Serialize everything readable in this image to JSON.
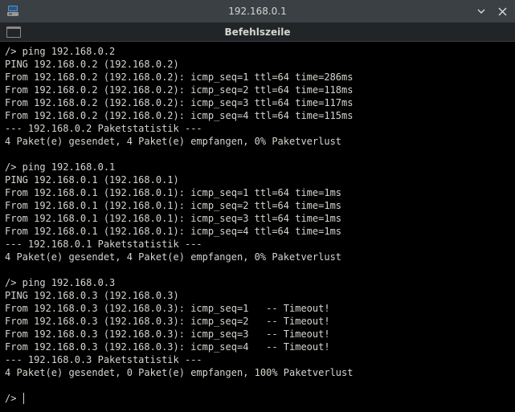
{
  "titlebar": {
    "title": "192.168.0.1",
    "icon_name": "network-pc-icon",
    "icon_colors": {
      "top": "#5294e2",
      "bottom": "#999999"
    }
  },
  "menubar": {
    "label": "Befehlszeile"
  },
  "terminal": {
    "background_color": "#000000",
    "text_color": "#d3d7cf",
    "font_size_pt": 9,
    "prompt": "/>",
    "cursor_visible": true,
    "blocks": [
      {
        "command": "ping 192.168.0.2",
        "header": "PING 192.168.0.2 (192.168.0.2)",
        "replies": [
          {
            "from": "192.168.0.2",
            "ip": "192.168.0.2",
            "seq": 1,
            "ttl": 64,
            "time_ms": 286
          },
          {
            "from": "192.168.0.2",
            "ip": "192.168.0.2",
            "seq": 2,
            "ttl": 64,
            "time_ms": 118
          },
          {
            "from": "192.168.0.2",
            "ip": "192.168.0.2",
            "seq": 3,
            "ttl": 64,
            "time_ms": 117
          },
          {
            "from": "192.168.0.2",
            "ip": "192.168.0.2",
            "seq": 4,
            "ttl": 64,
            "time_ms": 115
          }
        ],
        "stats_header": "--- 192.168.0.2 Paketstatistik ---",
        "stats_line": "4 Paket(e) gesendet, 4 Paket(e) empfangen, 0% Paketverlust"
      },
      {
        "command": "ping 192.168.0.1",
        "header": "PING 192.168.0.1 (192.168.0.1)",
        "replies": [
          {
            "from": "192.168.0.1",
            "ip": "192.168.0.1",
            "seq": 1,
            "ttl": 64,
            "time_ms": 1
          },
          {
            "from": "192.168.0.1",
            "ip": "192.168.0.1",
            "seq": 2,
            "ttl": 64,
            "time_ms": 1
          },
          {
            "from": "192.168.0.1",
            "ip": "192.168.0.1",
            "seq": 3,
            "ttl": 64,
            "time_ms": 1
          },
          {
            "from": "192.168.0.1",
            "ip": "192.168.0.1",
            "seq": 4,
            "ttl": 64,
            "time_ms": 1
          }
        ],
        "stats_header": "--- 192.168.0.1 Paketstatistik ---",
        "stats_line": "4 Paket(e) gesendet, 4 Paket(e) empfangen, 0% Paketverlust"
      },
      {
        "command": "ping 192.168.0.3",
        "header": "PING 192.168.0.3 (192.168.0.3)",
        "replies": [
          {
            "from": "192.168.0.3",
            "ip": "192.168.0.3",
            "seq": 1,
            "timeout": true
          },
          {
            "from": "192.168.0.3",
            "ip": "192.168.0.3",
            "seq": 2,
            "timeout": true
          },
          {
            "from": "192.168.0.3",
            "ip": "192.168.0.3",
            "seq": 3,
            "timeout": true
          },
          {
            "from": "192.168.0.3",
            "ip": "192.168.0.3",
            "seq": 4,
            "timeout": true
          }
        ],
        "stats_header": "--- 192.168.0.3 Paketstatistik ---",
        "stats_line": "4 Paket(e) gesendet, 0 Paket(e) empfangen, 100% Paketverlust"
      }
    ]
  }
}
